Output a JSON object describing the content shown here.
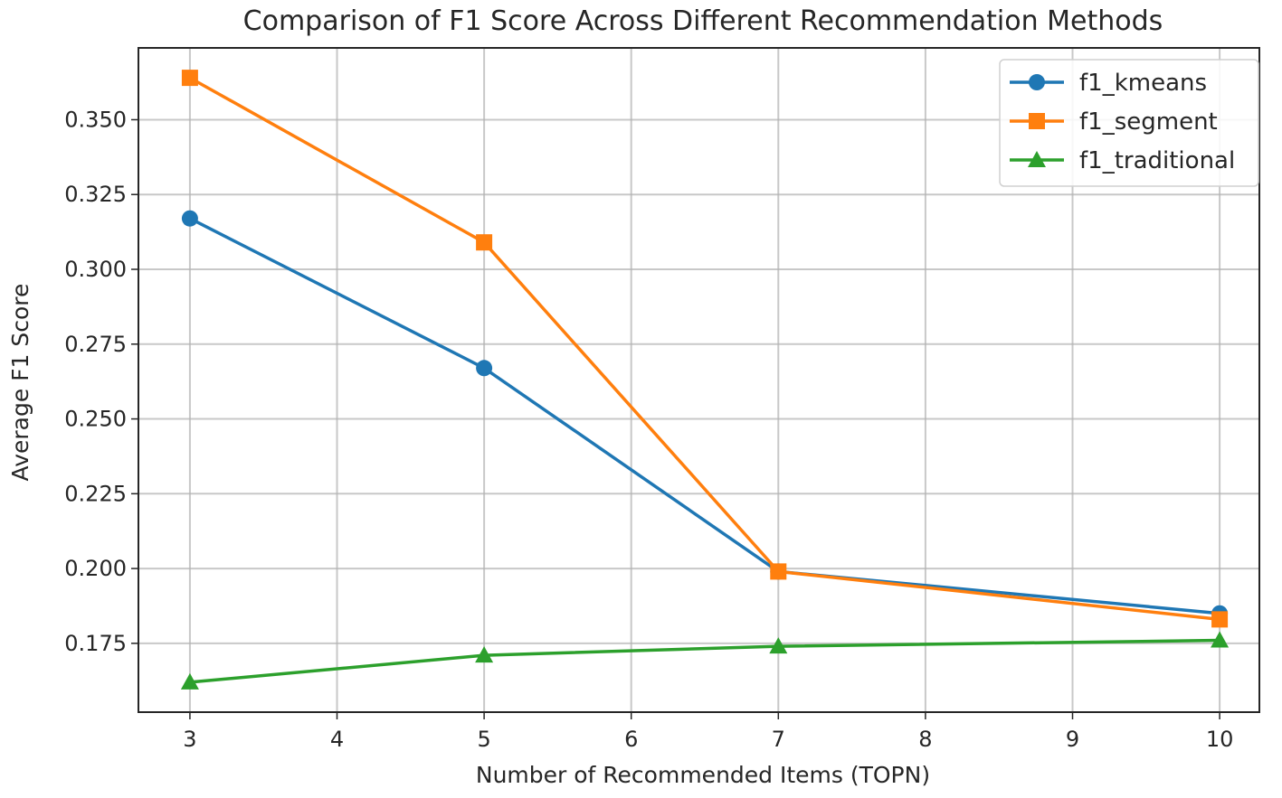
{
  "chart_data": {
    "type": "line",
    "title": "Comparison of F1 Score Across Different Recommendation Methods",
    "xlabel": "Number of Recommended Items (TOPN)",
    "ylabel": "Average F1 Score",
    "x": [
      3,
      5,
      7,
      10
    ],
    "xticks": [
      3,
      4,
      5,
      6,
      7,
      8,
      9,
      10
    ],
    "xtick_labels": [
      "3",
      "4",
      "5",
      "6",
      "7",
      "8",
      "9",
      "10"
    ],
    "yticks": [
      0.175,
      0.2,
      0.225,
      0.25,
      0.275,
      0.3,
      0.325,
      0.35
    ],
    "ytick_labels": [
      "0.175",
      "0.200",
      "0.225",
      "0.250",
      "0.275",
      "0.300",
      "0.325",
      "0.350"
    ],
    "xlim": [
      2.65,
      10.27
    ],
    "ylim": [
      0.152,
      0.374
    ],
    "grid": true,
    "legend_position": "upper right",
    "series": [
      {
        "name": "f1_kmeans",
        "values": [
          0.317,
          0.267,
          0.199,
          0.185
        ],
        "color": "#1f77b4",
        "marker": "circle"
      },
      {
        "name": "f1_segment",
        "values": [
          0.364,
          0.309,
          0.199,
          0.183
        ],
        "color": "#ff7f0e",
        "marker": "square"
      },
      {
        "name": "f1_traditional",
        "values": [
          0.162,
          0.171,
          0.174,
          0.176
        ],
        "color": "#2ca02c",
        "marker": "triangle"
      }
    ]
  }
}
